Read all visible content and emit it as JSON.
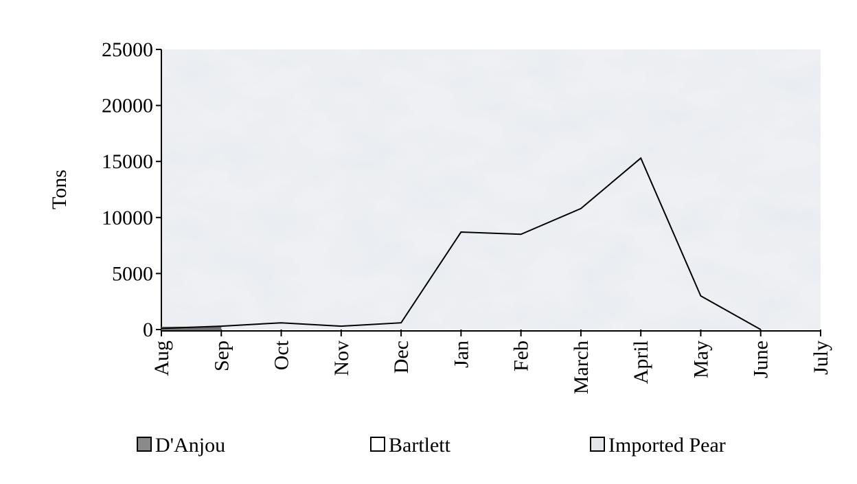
{
  "chart_data": {
    "type": "line",
    "y_label": "Tons",
    "categories": [
      "Aug",
      "Sep",
      "Oct",
      "Nov",
      "Dec",
      "Jan",
      "Feb",
      "March",
      "April",
      "May",
      "June",
      "July"
    ],
    "series": [
      {
        "name": "D'Anjou",
        "color": "#8a8a8a",
        "line_color": "#6e6e6e",
        "values": [
          100,
          100,
          null,
          null,
          null,
          null,
          null,
          null,
          null,
          null,
          null,
          null
        ]
      },
      {
        "name": "Bartlett",
        "color": "#ffffff",
        "line_color": "#ffffff",
        "values": [
          null,
          null,
          null,
          null,
          null,
          null,
          null,
          null,
          null,
          null,
          null,
          null
        ]
      },
      {
        "name": "Imported Pear",
        "color": "#e4e6ea",
        "line_color": "#000000",
        "values": [
          100,
          300,
          600,
          300,
          600,
          8700,
          8500,
          10800,
          15300,
          3000,
          0,
          null
        ]
      }
    ],
    "ylim": [
      0,
      25000
    ],
    "yticks": [
      0,
      5000,
      10000,
      15000,
      20000,
      25000
    ]
  }
}
